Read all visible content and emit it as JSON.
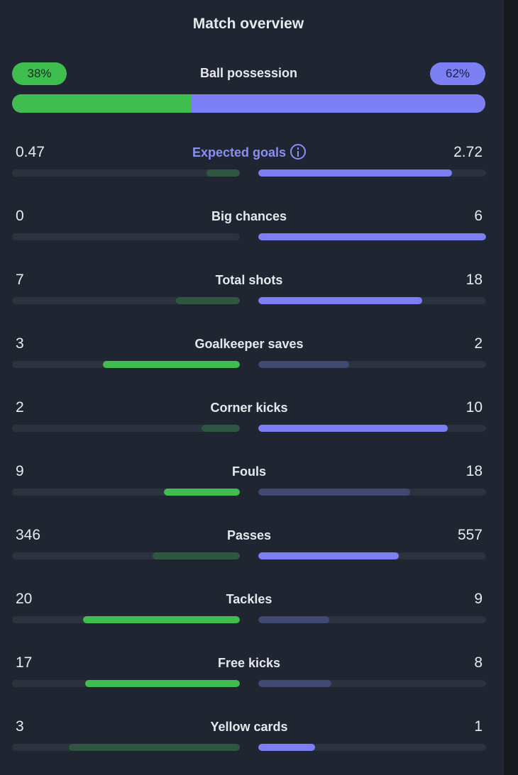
{
  "title": "Match overview",
  "colors": {
    "home": "#3fbe4f",
    "away": "#7c80f4",
    "home_weak": "#2f5640",
    "away_weak": "#414872",
    "track": "#2b333e"
  },
  "possession": {
    "label": "Ball possession",
    "home_text": "38%",
    "away_text": "62%",
    "home": 38,
    "away": 62
  },
  "stats": [
    {
      "label": "Expected goals",
      "home": "0.47",
      "away": "2.72",
      "home_fill": 0.147,
      "away_fill": 0.85,
      "home_strong": false,
      "away_strong": true,
      "info_icon": "info-icon",
      "accent": true
    },
    {
      "label": "Big chances",
      "home": "0",
      "away": "6",
      "home_fill": 0,
      "away_fill": 1.0,
      "home_strong": false,
      "away_strong": true
    },
    {
      "label": "Total shots",
      "home": "7",
      "away": "18",
      "home_fill": 0.28,
      "away_fill": 0.72,
      "home_strong": false,
      "away_strong": true
    },
    {
      "label": "Goalkeeper saves",
      "home": "3",
      "away": "2",
      "home_fill": 0.6,
      "away_fill": 0.4,
      "home_strong": true,
      "away_strong": false
    },
    {
      "label": "Corner kicks",
      "home": "2",
      "away": "10",
      "home_fill": 0.167,
      "away_fill": 0.833,
      "home_strong": false,
      "away_strong": true
    },
    {
      "label": "Fouls",
      "home": "9",
      "away": "18",
      "home_fill": 0.333,
      "away_fill": 0.667,
      "home_strong": true,
      "away_strong": false
    },
    {
      "label": "Passes",
      "home": "346",
      "away": "557",
      "home_fill": 0.383,
      "away_fill": 0.617,
      "home_strong": false,
      "away_strong": true
    },
    {
      "label": "Tackles",
      "home": "20",
      "away": "9",
      "home_fill": 0.69,
      "away_fill": 0.31,
      "home_strong": true,
      "away_strong": false
    },
    {
      "label": "Free kicks",
      "home": "17",
      "away": "8",
      "home_fill": 0.68,
      "away_fill": 0.32,
      "home_strong": true,
      "away_strong": false
    },
    {
      "label": "Yellow cards",
      "home": "3",
      "away": "1",
      "home_fill": 0.75,
      "away_fill": 0.25,
      "home_strong": false,
      "away_strong": true
    }
  ]
}
